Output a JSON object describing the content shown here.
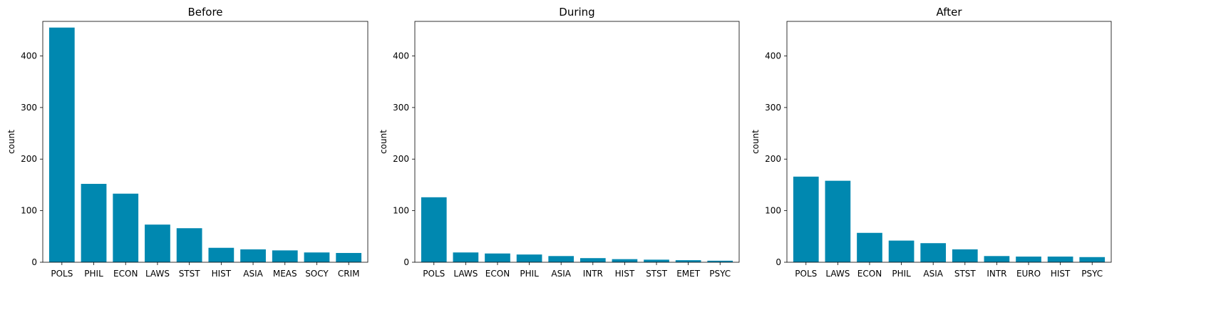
{
  "chart_data": [
    {
      "type": "bar",
      "title": "Before",
      "ylabel": "count",
      "xlabel": "",
      "ylim": [
        0,
        467
      ],
      "yticks": [
        0,
        100,
        200,
        300,
        400
      ],
      "categories": [
        "POLS",
        "PHIL",
        "ECON",
        "LAWS",
        "STST",
        "HIST",
        "ASIA",
        "MEAS",
        "SOCY",
        "CRIM"
      ],
      "values": [
        455,
        152,
        133,
        73,
        66,
        28,
        25,
        23,
        19,
        18
      ],
      "color": "#0088b0",
      "grid": false
    },
    {
      "type": "bar",
      "title": "During",
      "ylabel": "count",
      "xlabel": "",
      "ylim": [
        0,
        467
      ],
      "yticks": [
        0,
        100,
        200,
        300,
        400
      ],
      "categories": [
        "POLS",
        "LAWS",
        "ECON",
        "PHIL",
        "ASIA",
        "INTR",
        "HIST",
        "STST",
        "EMET",
        "PSYC"
      ],
      "values": [
        126,
        19,
        17,
        15,
        12,
        8,
        6,
        5,
        4,
        3
      ],
      "color": "#0088b0",
      "grid": false
    },
    {
      "type": "bar",
      "title": "After",
      "ylabel": "count",
      "xlabel": "",
      "ylim": [
        0,
        467
      ],
      "yticks": [
        0,
        100,
        200,
        300,
        400
      ],
      "categories": [
        "POLS",
        "LAWS",
        "ECON",
        "PHIL",
        "ASIA",
        "STST",
        "INTR",
        "EURO",
        "HIST",
        "PSYC"
      ],
      "values": [
        166,
        158,
        57,
        42,
        37,
        25,
        12,
        11,
        11,
        10
      ],
      "color": "#0088b0",
      "grid": false
    }
  ]
}
